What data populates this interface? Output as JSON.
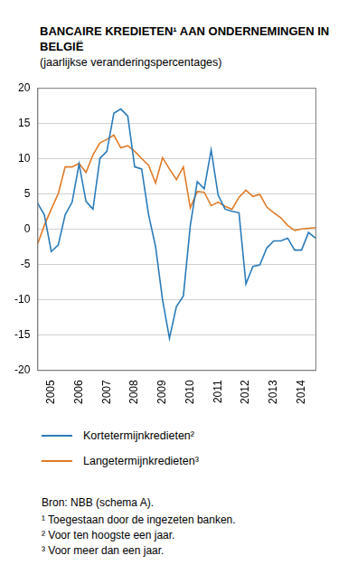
{
  "chart_data": {
    "type": "line",
    "title": "BANCAIRE KREDIETEN¹ AAN ONDERNEMINGEN IN BELGIË",
    "subtitle": "(jaarlijkse veranderingspercentages)",
    "categories": [
      null,
      null,
      "2005",
      null,
      null,
      null,
      "2006",
      null,
      null,
      null,
      "2007",
      null,
      null,
      null,
      "2008",
      null,
      null,
      null,
      "2009",
      null,
      null,
      null,
      "2010",
      null,
      null,
      null,
      "2011",
      null,
      null,
      null,
      "2012",
      null,
      null,
      null,
      "2013",
      null,
      null,
      null,
      "2014",
      null,
      null
    ],
    "series": [
      {
        "name": "Kortetermijnkredieten²",
        "color": "#2b7bba",
        "values": [
          3.7,
          2,
          -3.2,
          -2.3,
          2,
          3.8,
          9.2,
          3.9,
          2.8,
          10,
          11,
          16.4,
          17,
          16,
          8.8,
          8.5,
          2,
          -2.5,
          -10,
          -15.5,
          -11,
          -9.5,
          0.5,
          6.7,
          5.7,
          11.2,
          4.8,
          2.8,
          2.5,
          2.3,
          -7.8,
          -5.3,
          -5.1,
          -2.7,
          -1.7,
          -1.7,
          -1.3,
          -3,
          -3,
          -0.5,
          -1.3
        ]
      },
      {
        "name": "Langetermijnkredieten³",
        "color": "#e07b2a",
        "values": [
          -2.2,
          0.5,
          2.8,
          5,
          8.8,
          8.8,
          9.3,
          8,
          10.5,
          12.2,
          12.7,
          13.3,
          11.5,
          11.8,
          11,
          10,
          9,
          6.5,
          10.1,
          8.5,
          7,
          8.8,
          3,
          5.3,
          5.2,
          3.3,
          3.8,
          3.2,
          2.8,
          4.5,
          5.5,
          4.6,
          4.9,
          3.1,
          2.3,
          1.6,
          0.5,
          -0.2,
          0,
          0.1,
          0.2
        ]
      }
    ],
    "ylim": [
      -20,
      20
    ],
    "yticks": [
      -20,
      -15,
      -10,
      -5,
      0,
      5,
      10,
      15,
      20
    ],
    "grid": true,
    "legend": "bottom",
    "source": "Bron: NBB (schema A).",
    "notes": [
      "¹ Toegestaan door de ingezeten banken.",
      "² Voor ten hoogste een jaar.",
      "³ Voor meer dan een jaar."
    ]
  }
}
